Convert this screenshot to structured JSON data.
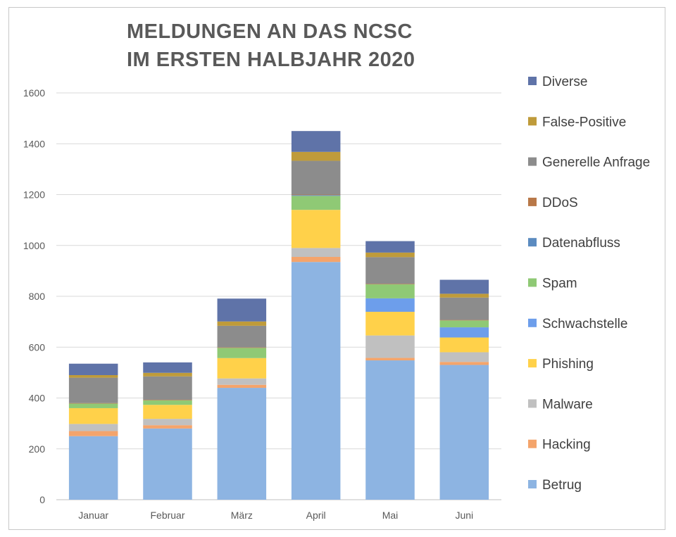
{
  "chart_data": {
    "type": "bar",
    "stacked": true,
    "title_lines": [
      "MELDUNGEN AN DAS NCSC",
      "IM ERSTEN HALBJAHR 2020"
    ],
    "categories": [
      "Januar",
      "Februar",
      "März",
      "April",
      "Mai",
      "Juni"
    ],
    "ylim": [
      0,
      1600
    ],
    "yticks": [
      0,
      200,
      400,
      600,
      800,
      1000,
      1200,
      1400,
      1600
    ],
    "grid": true,
    "legend_position": "right",
    "series": [
      {
        "name": "Betrug",
        "color": "#8DB4E2",
        "values": [
          250,
          280,
          440,
          935,
          548,
          530
        ]
      },
      {
        "name": "Hacking",
        "color": "#F4A46B",
        "values": [
          20,
          13,
          12,
          20,
          10,
          12
        ]
      },
      {
        "name": "Malware",
        "color": "#C0C0C0",
        "values": [
          28,
          25,
          25,
          35,
          88,
          38
        ]
      },
      {
        "name": "Phishing",
        "color": "#FFD14A",
        "values": [
          62,
          55,
          80,
          150,
          93,
          58
        ]
      },
      {
        "name": "Schwachstelle",
        "color": "#6D9EEB",
        "values": [
          0,
          0,
          0,
          0,
          53,
          40
        ]
      },
      {
        "name": "Spam",
        "color": "#8FC975",
        "values": [
          18,
          18,
          40,
          55,
          55,
          27
        ]
      },
      {
        "name": "Datenabfluss",
        "color": "#5B8BC0",
        "values": [
          0,
          0,
          0,
          3,
          0,
          0
        ]
      },
      {
        "name": "DDoS",
        "color": "#B87848",
        "values": [
          2,
          2,
          2,
          2,
          2,
          2
        ]
      },
      {
        "name": "Generelle Anfrage",
        "color": "#8C8C8C",
        "values": [
          100,
          92,
          85,
          133,
          105,
          88
        ]
      },
      {
        "name": "False-Positive",
        "color": "#BF9B3A",
        "values": [
          10,
          14,
          17,
          35,
          18,
          15
        ]
      },
      {
        "name": "Diverse",
        "color": "#5F73A8",
        "values": [
          45,
          41,
          90,
          82,
          45,
          55
        ]
      }
    ]
  }
}
